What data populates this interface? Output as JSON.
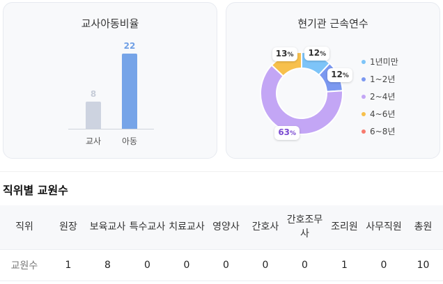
{
  "ratio_card": {
    "title": "교사아동비율",
    "chart_data": {
      "type": "bar",
      "categories": [
        "교사",
        "아동"
      ],
      "values": [
        8,
        22
      ],
      "colors": [
        "#cdd3e0",
        "#76a4e8"
      ],
      "ylim": [
        0,
        22
      ]
    }
  },
  "tenure_card": {
    "title": "현기관 근속연수",
    "chart_data": {
      "type": "pie",
      "categories": [
        "1년미만",
        "1~2년",
        "2~4년",
        "4~6년",
        "6~8년"
      ],
      "values": [
        12,
        12,
        63,
        13,
        0
      ],
      "slice_labels": [
        "12",
        "12",
        "63",
        "13",
        ""
      ],
      "unit": "%",
      "colors": [
        "#7dc4f8",
        "#7b98f0",
        "#c3a6f5",
        "#f7c04c",
        "#f77a6e"
      ],
      "label_colors": [
        "#333333",
        "#333333",
        "#7b4bd1",
        "#333333",
        "#333333"
      ],
      "legend": "right"
    }
  },
  "staff": {
    "title": "직위별 교원수",
    "headers": [
      "직위",
      "원장",
      "보육교사",
      "특수교사",
      "치료교사",
      "영양사",
      "간호사",
      "간호조무사",
      "조리원",
      "사무직원",
      "총원"
    ],
    "row_label": "교원수",
    "values": [
      "1",
      "8",
      "0",
      "0",
      "0",
      "0",
      "0",
      "1",
      "0",
      "10"
    ]
  }
}
